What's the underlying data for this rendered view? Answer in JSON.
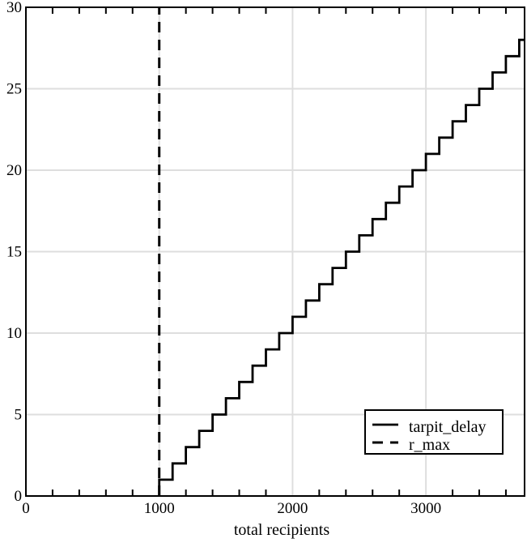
{
  "page": {
    "background_color": "#ffffff",
    "foreground_color": "#000000"
  },
  "chart_data": {
    "type": "line",
    "subtype": "step",
    "title": "",
    "xlabel": "total recipients",
    "ylabel": "",
    "xlim": [
      0,
      3740
    ],
    "ylim": [
      0,
      30
    ],
    "x_major_ticks": [
      0,
      1000,
      2000,
      3000
    ],
    "x_tick_labels": [
      "0",
      "1000",
      "2000",
      "3000"
    ],
    "x_minor_tick_step": 200,
    "y_major_ticks": [
      0,
      5,
      10,
      15,
      20,
      25,
      30
    ],
    "y_tick_labels": [
      "0",
      "5",
      "10",
      "15",
      "20",
      "25",
      "30"
    ],
    "grid": "on",
    "grid_color": "#dedede",
    "axis_color": "#000000",
    "legend_position": "bottom-right",
    "legend": {
      "entries": [
        {
          "label": "tarpit_delay",
          "style": "solid"
        },
        {
          "label": "r_max",
          "style": "dashed"
        }
      ]
    },
    "series": [
      {
        "name": "tarpit_delay",
        "style": "solid",
        "color": "#000000",
        "points": [
          [
            1000,
            0
          ],
          [
            1000,
            1
          ],
          [
            1100,
            1
          ],
          [
            1100,
            2
          ],
          [
            1200,
            2
          ],
          [
            1200,
            3
          ],
          [
            1300,
            3
          ],
          [
            1300,
            4
          ],
          [
            1400,
            4
          ],
          [
            1400,
            5
          ],
          [
            1500,
            5
          ],
          [
            1500,
            6
          ],
          [
            1600,
            6
          ],
          [
            1600,
            7
          ],
          [
            1700,
            7
          ],
          [
            1700,
            8
          ],
          [
            1800,
            8
          ],
          [
            1800,
            9
          ],
          [
            1900,
            9
          ],
          [
            1900,
            10
          ],
          [
            2000,
            10
          ],
          [
            2000,
            11
          ],
          [
            2100,
            11
          ],
          [
            2100,
            12
          ],
          [
            2200,
            12
          ],
          [
            2200,
            13
          ],
          [
            2300,
            13
          ],
          [
            2300,
            14
          ],
          [
            2400,
            14
          ],
          [
            2400,
            15
          ],
          [
            2500,
            15
          ],
          [
            2500,
            16
          ],
          [
            2600,
            16
          ],
          [
            2600,
            17
          ],
          [
            2700,
            17
          ],
          [
            2700,
            18
          ],
          [
            2800,
            18
          ],
          [
            2800,
            19
          ],
          [
            2900,
            19
          ],
          [
            2900,
            20
          ],
          [
            3000,
            20
          ],
          [
            3000,
            21
          ],
          [
            3100,
            21
          ],
          [
            3100,
            22
          ],
          [
            3200,
            22
          ],
          [
            3200,
            23
          ],
          [
            3300,
            23
          ],
          [
            3300,
            24
          ],
          [
            3400,
            24
          ],
          [
            3400,
            25
          ],
          [
            3500,
            25
          ],
          [
            3500,
            26
          ],
          [
            3600,
            26
          ],
          [
            3600,
            27
          ],
          [
            3700,
            27
          ],
          [
            3700,
            28
          ],
          [
            3740,
            28
          ]
        ]
      },
      {
        "name": "r_max",
        "style": "dashed",
        "color": "#000000",
        "vline_x": 1000,
        "y_span": [
          0,
          30
        ]
      }
    ]
  }
}
